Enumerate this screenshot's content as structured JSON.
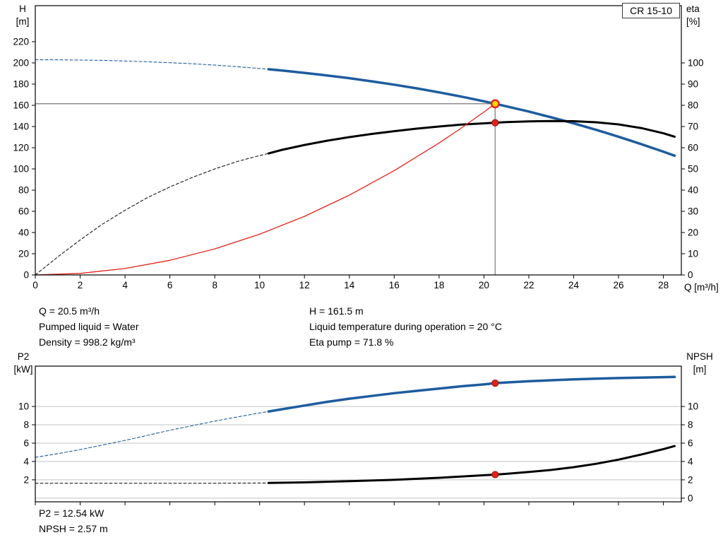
{
  "colors": {
    "curve_blue": "#1e5c9e",
    "curve_black": "#000000",
    "curve_red": "#e2231a",
    "marker_red": "#e2231a",
    "marker_red_edge": "#9e0f08",
    "marker_yellow": "#ffd800",
    "crosshair_gray": "#8c8c8c",
    "grid_gray": "#c3c3c3",
    "axis_black": "#000000"
  },
  "info_top": {
    "left": [
      "Q = 20.5 m³/h",
      "Pumped liquid = Water",
      "Density = 998.2 kg/m³"
    ],
    "right": [
      "H = 161.5 m",
      "Liquid temperature during operation = 20 °C",
      "Eta pump = 71.8 %"
    ]
  },
  "info_bottom": [
    "P2 = 12.54 kW",
    "NPSH = 2.57 m"
  ],
  "chart_data": [
    {
      "type": "line",
      "title": "CR 15-10",
      "xlabel": "Q [m³/h]",
      "ylabel_left": [
        "H",
        "[m]"
      ],
      "ylabel_right": [
        "eta",
        "[%]"
      ],
      "xlim": [
        0,
        28.8
      ],
      "x_ticks": [
        0,
        2,
        4,
        6,
        8,
        10,
        12,
        14,
        16,
        18,
        20,
        22,
        24,
        26,
        28
      ],
      "x_labels": true,
      "ylim_left": [
        0,
        254
      ],
      "y_ticks_left": [
        0,
        20,
        40,
        60,
        80,
        100,
        120,
        140,
        160,
        180,
        200,
        220
      ],
      "ylim_right": [
        0,
        127
      ],
      "y_ticks_right": [
        0,
        10,
        20,
        30,
        40,
        50,
        60,
        70,
        80,
        90,
        100
      ],
      "grid": null,
      "crosshair": {
        "x": 20.5,
        "y": 161.5,
        "axis": "left"
      },
      "series": [
        {
          "name": "head-curve-dashed",
          "axis": "left",
          "color": "curve_blue",
          "width": 1.1,
          "dash": true,
          "points": [
            [
              0,
              203
            ],
            [
              1,
              202.9
            ],
            [
              2,
              202.7
            ],
            [
              3,
              202.4
            ],
            [
              4,
              201.8
            ],
            [
              5,
              201.1
            ],
            [
              6,
              200.2
            ],
            [
              7,
              199.2
            ],
            [
              8,
              197.9
            ],
            [
              9,
              196.4
            ],
            [
              10,
              194.7
            ],
            [
              10.4,
              194.0
            ]
          ]
        },
        {
          "name": "head-curve-solid",
          "axis": "left",
          "color": "curve_blue",
          "width": 3.5,
          "dash": false,
          "points": [
            [
              10.4,
              194.0
            ],
            [
              11,
              192.8
            ],
            [
              12,
              190.6
            ],
            [
              13,
              188.2
            ],
            [
              14,
              185.6
            ],
            [
              15,
              182.6
            ],
            [
              16,
              179.5
            ],
            [
              17,
              176.0
            ],
            [
              18,
              172.2
            ],
            [
              19,
              168.2
            ],
            [
              20,
              163.8
            ],
            [
              20.5,
              161.5
            ],
            [
              21,
              159.1
            ],
            [
              22,
              154.1
            ],
            [
              23,
              148.7
            ],
            [
              24,
              143.0
            ],
            [
              25,
              136.9
            ],
            [
              26,
              130.4
            ],
            [
              27,
              123.5
            ],
            [
              28,
              116.3
            ],
            [
              28.5,
              112.5
            ]
          ]
        },
        {
          "name": "eta-curve-dashed",
          "axis": "right",
          "color": "curve_black",
          "width": 1,
          "dash": true,
          "points": [
            [
              0,
              0
            ],
            [
              1,
              8.5
            ],
            [
              2,
              16.5
            ],
            [
              3,
              24
            ],
            [
              4,
              30.5
            ],
            [
              5,
              36.5
            ],
            [
              6,
              41.5
            ],
            [
              7,
              46
            ],
            [
              8,
              50
            ],
            [
              9,
              53.5
            ],
            [
              10,
              56.3
            ],
            [
              10.4,
              57.3
            ]
          ]
        },
        {
          "name": "eta-curve-solid",
          "axis": "right",
          "color": "curve_black",
          "width": 3,
          "dash": false,
          "points": [
            [
              10.4,
              57.3
            ],
            [
              11,
              59
            ],
            [
              12,
              61.3
            ],
            [
              13,
              63.3
            ],
            [
              14,
              65
            ],
            [
              15,
              66.5
            ],
            [
              16,
              67.8
            ],
            [
              17,
              69
            ],
            [
              18,
              70
            ],
            [
              19,
              70.9
            ],
            [
              20,
              71.5
            ],
            [
              20.5,
              71.8
            ],
            [
              21,
              72.1
            ],
            [
              22,
              72.4
            ],
            [
              23,
              72.6
            ],
            [
              24,
              72.5
            ],
            [
              25,
              72
            ],
            [
              26,
              71
            ],
            [
              27,
              69.3
            ],
            [
              28,
              66.8
            ],
            [
              28.5,
              65.2
            ]
          ]
        },
        {
          "name": "system-curve",
          "axis": "left",
          "color": "curve_red",
          "width": 1.3,
          "dash": false,
          "points": [
            [
              0,
              0
            ],
            [
              2,
              1.5
            ],
            [
              4,
              6.1
            ],
            [
              6,
              13.8
            ],
            [
              8,
              24.6
            ],
            [
              10,
              38.4
            ],
            [
              12,
              55.3
            ],
            [
              14,
              75.3
            ],
            [
              16,
              98.4
            ],
            [
              18,
              124.5
            ],
            [
              19,
              138.7
            ],
            [
              20,
              153.7
            ],
            [
              20.5,
              161.5
            ]
          ]
        }
      ],
      "markers": [
        {
          "name": "duty-point-marker",
          "x": 20.5,
          "y": 161.5,
          "axis": "left",
          "fill": "marker_yellow",
          "stroke": "marker_red",
          "r": 5.2,
          "sw": 2.4
        },
        {
          "name": "eta-duty-marker",
          "x": 20.5,
          "y": 71.8,
          "axis": "right",
          "fill": "marker_red",
          "stroke": "marker_red_edge",
          "r": 4.6,
          "sw": 1
        }
      ]
    },
    {
      "type": "line",
      "title": "",
      "xlabel": "",
      "ylabel_left": [
        "P2",
        "[kW]"
      ],
      "ylabel_right": [
        "NPSH",
        "[m]"
      ],
      "xlim": [
        0,
        28.8
      ],
      "x_ticks": [
        0,
        2,
        4,
        6,
        8,
        10,
        12,
        14,
        16,
        18,
        20,
        22,
        24,
        26,
        28
      ],
      "x_labels": false,
      "ylim_left": [
        -0.4,
        14.4
      ],
      "y_ticks_left": [
        2,
        4,
        6,
        8,
        10
      ],
      "ylim_right": [
        -0.4,
        14.4
      ],
      "y_ticks_right": [
        0,
        2,
        4,
        6,
        8,
        10
      ],
      "grid": {
        "ticks": [
          0,
          2,
          4,
          6,
          8,
          10
        ],
        "axis": "left"
      },
      "crosshair": null,
      "series": [
        {
          "name": "p2-curve-dashed",
          "axis": "left",
          "color": "curve_blue",
          "width": 1.1,
          "dash": true,
          "points": [
            [
              0,
              4.45
            ],
            [
              1,
              4.85
            ],
            [
              2,
              5.3
            ],
            [
              3,
              5.8
            ],
            [
              4,
              6.3
            ],
            [
              5,
              6.85
            ],
            [
              6,
              7.4
            ],
            [
              7,
              7.9
            ],
            [
              8,
              8.4
            ],
            [
              9,
              8.85
            ],
            [
              10,
              9.3
            ],
            [
              10.4,
              9.45
            ]
          ]
        },
        {
          "name": "p2-curve-solid",
          "axis": "left",
          "color": "curve_blue",
          "width": 3.5,
          "dash": false,
          "points": [
            [
              10.4,
              9.45
            ],
            [
              11,
              9.7
            ],
            [
              12,
              10.1
            ],
            [
              13,
              10.5
            ],
            [
              14,
              10.85
            ],
            [
              15,
              11.15
            ],
            [
              16,
              11.45
            ],
            [
              17,
              11.7
            ],
            [
              18,
              11.95
            ],
            [
              19,
              12.2
            ],
            [
              20,
              12.4
            ],
            [
              20.5,
              12.54
            ],
            [
              21,
              12.62
            ],
            [
              22,
              12.75
            ],
            [
              23,
              12.86
            ],
            [
              24,
              12.95
            ],
            [
              25,
              13.03
            ],
            [
              26,
              13.1
            ],
            [
              27,
              13.15
            ],
            [
              28,
              13.2
            ],
            [
              28.5,
              13.22
            ]
          ]
        },
        {
          "name": "npsh-curve-dashed",
          "axis": "right",
          "color": "curve_black",
          "width": 1,
          "dash": true,
          "points": [
            [
              0,
              1.62
            ],
            [
              2,
              1.62
            ],
            [
              4,
              1.62
            ],
            [
              6,
              1.62
            ],
            [
              8,
              1.63
            ],
            [
              10,
              1.65
            ],
            [
              10.4,
              1.66
            ]
          ]
        },
        {
          "name": "npsh-curve-solid",
          "axis": "right",
          "color": "curve_black",
          "width": 3,
          "dash": false,
          "points": [
            [
              10.4,
              1.66
            ],
            [
              12,
              1.72
            ],
            [
              14,
              1.85
            ],
            [
              16,
              2.0
            ],
            [
              18,
              2.22
            ],
            [
              20,
              2.5
            ],
            [
              20.5,
              2.57
            ],
            [
              21,
              2.65
            ],
            [
              22,
              2.85
            ],
            [
              23,
              3.08
            ],
            [
              24,
              3.38
            ],
            [
              25,
              3.75
            ],
            [
              26,
              4.2
            ],
            [
              27,
              4.75
            ],
            [
              28,
              5.35
            ],
            [
              28.5,
              5.68
            ]
          ]
        }
      ],
      "markers": [
        {
          "name": "p2-duty-marker",
          "x": 20.5,
          "y": 12.54,
          "axis": "left",
          "fill": "marker_red",
          "stroke": "marker_red_edge",
          "r": 4.6,
          "sw": 1
        },
        {
          "name": "npsh-duty-marker",
          "x": 20.5,
          "y": 2.57,
          "axis": "right",
          "fill": "marker_red",
          "stroke": "marker_red_edge",
          "r": 4.6,
          "sw": 1
        }
      ]
    }
  ]
}
